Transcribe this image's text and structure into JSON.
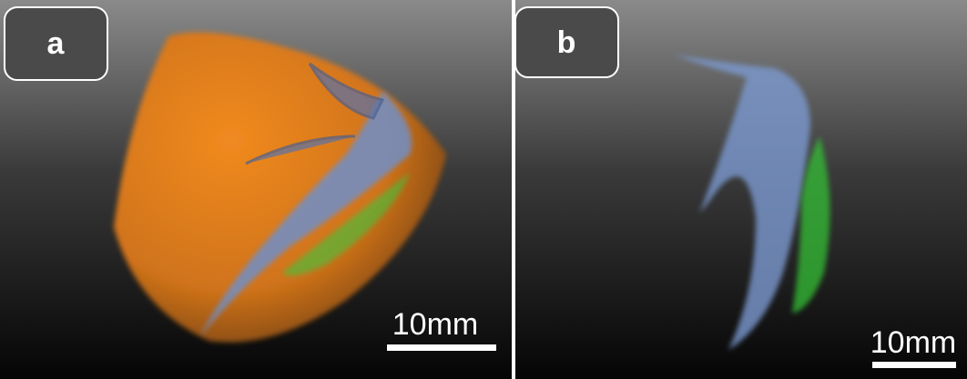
{
  "panels": [
    {
      "label": "a",
      "scale_bar": "10mm"
    },
    {
      "label": "b",
      "scale_bar": "10mm"
    }
  ]
}
